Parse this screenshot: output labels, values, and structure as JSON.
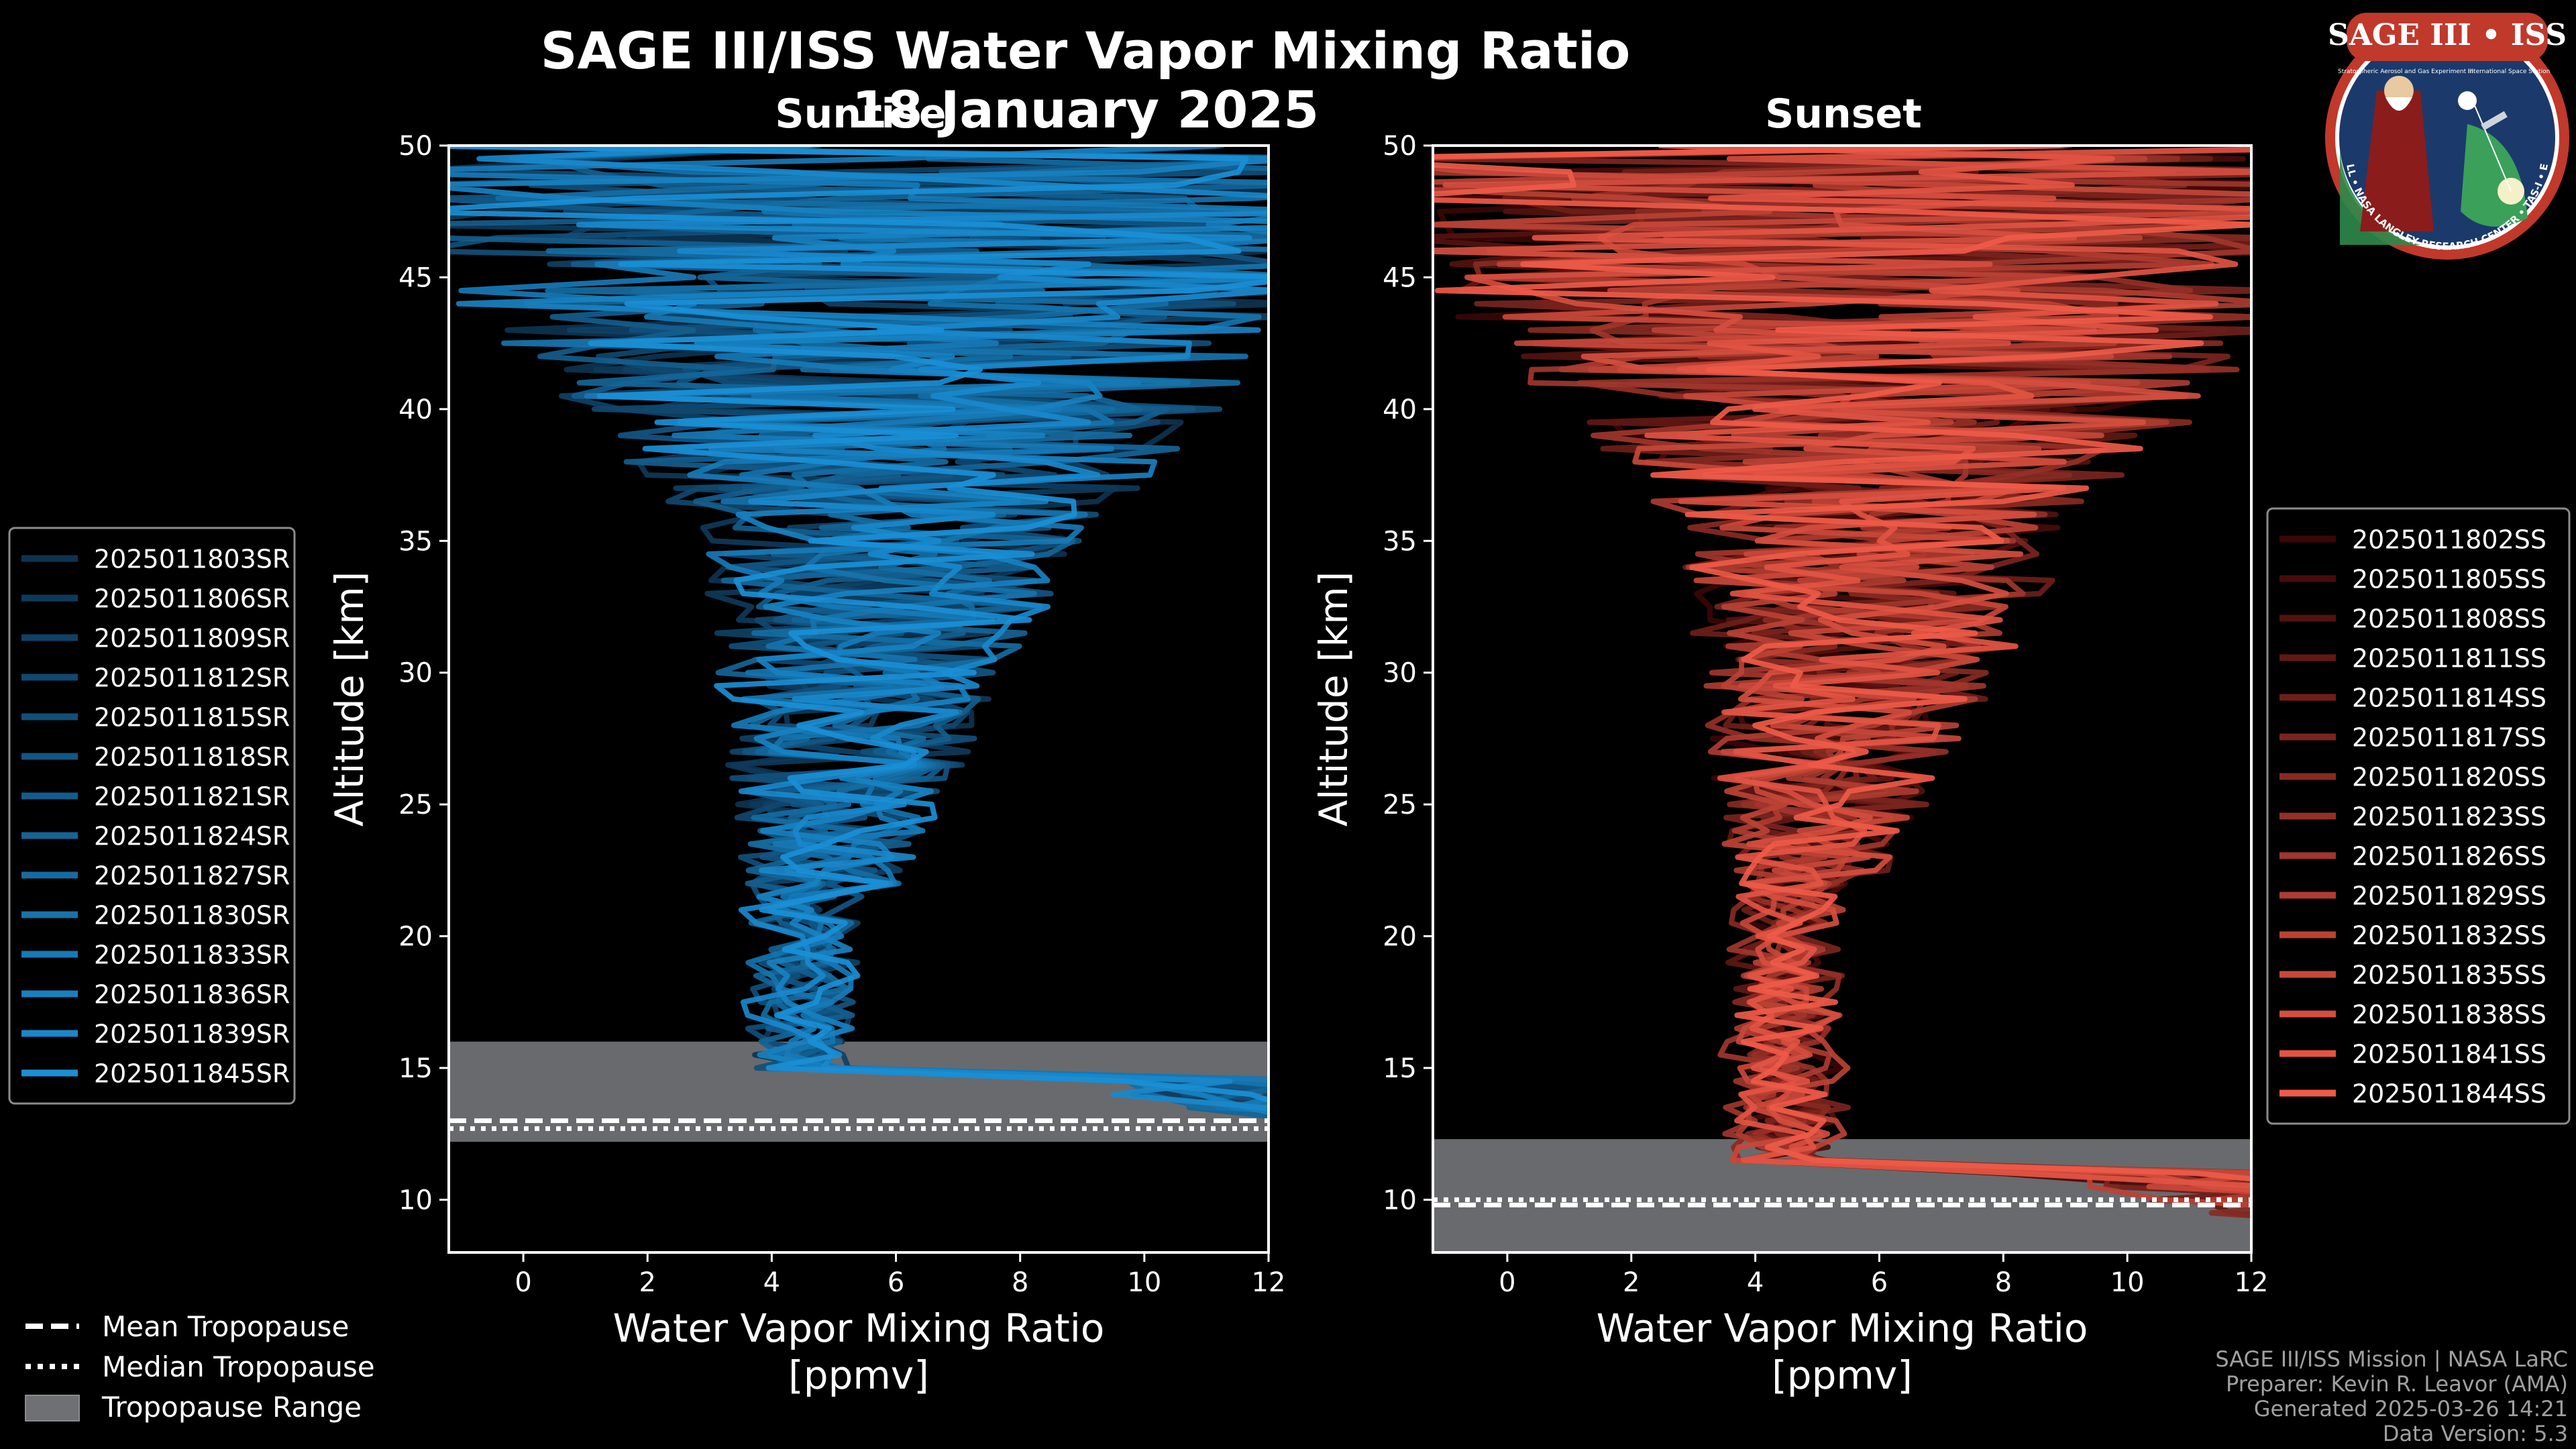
{
  "header": {
    "title": "SAGE III/ISS Water Vapor Mixing Ratio",
    "date": "18 January 2025",
    "left_subtitle": "Sunrise",
    "right_subtitle": "Sunset"
  },
  "logo": {
    "name": "SAGE III • ISS",
    "subtitle_left": "Stratospheric Aerosol and Gas Experiment III",
    "subtitle_right": "International Space Station",
    "ring_text": "BALL • NASA LANGLEY RESEARCH CENTER • TAS-I • ESA",
    "colors": {
      "ring": "#c0392b",
      "field": "#1b3a6b",
      "white": "#ffffff"
    }
  },
  "footer": {
    "line1": "SAGE III/ISS Mission | NASA LaRC",
    "line2": "Preparer: Kevin R. Leavor (AMA)",
    "line3": "Generated 2025-03-26 14:21",
    "line4": "Data Version: 5.3"
  },
  "tropopause_legend": {
    "mean": "Mean Tropopause",
    "median": "Median Tropopause",
    "range": "Tropopause Range"
  },
  "chart_data": [
    {
      "type": "line",
      "panel": "sunrise",
      "title": "Sunrise",
      "xlabel": "Water Vapor Mixing Ratio\n[ppmv]",
      "ylabel": "Altitude [km]",
      "xlim": [
        -1.2,
        12
      ],
      "ylim": [
        8,
        50
      ],
      "xticks": [
        0,
        2,
        4,
        6,
        8,
        10,
        12
      ],
      "yticks": [
        10,
        15,
        20,
        25,
        30,
        35,
        40,
        45,
        50
      ],
      "grid": false,
      "legend_position": "left",
      "tropopause": {
        "mean": 13.0,
        "median": 12.7,
        "range": [
          12.2,
          16.0
        ]
      },
      "color_dark": "#0d3350",
      "color_light": "#1a8fd6",
      "series": [
        {
          "name": "2025011803SR",
          "center_tropo": 4.5,
          "seed": 3
        },
        {
          "name": "2025011806SR",
          "center_tropo": 4.3,
          "seed": 6
        },
        {
          "name": "2025011809SR",
          "center_tropo": 4.6,
          "seed": 9
        },
        {
          "name": "2025011812SR",
          "center_tropo": 4.2,
          "seed": 12
        },
        {
          "name": "2025011815SR",
          "center_tropo": 4.4,
          "seed": 15
        },
        {
          "name": "2025011818SR",
          "center_tropo": 4.7,
          "seed": 18
        },
        {
          "name": "2025011821SR",
          "center_tropo": 4.5,
          "seed": 21
        },
        {
          "name": "2025011824SR",
          "center_tropo": 4.3,
          "seed": 24
        },
        {
          "name": "2025011827SR",
          "center_tropo": 4.6,
          "seed": 27
        },
        {
          "name": "2025011830SR",
          "center_tropo": 4.4,
          "seed": 30
        },
        {
          "name": "2025011833SR",
          "center_tropo": 4.8,
          "seed": 33
        },
        {
          "name": "2025011836SR",
          "center_tropo": 4.5,
          "seed": 36
        },
        {
          "name": "2025011839SR",
          "center_tropo": 4.2,
          "seed": 39
        },
        {
          "name": "2025011845SR",
          "center_tropo": 4.6,
          "seed": 45
        }
      ]
    },
    {
      "type": "line",
      "panel": "sunset",
      "title": "Sunset",
      "xlabel": "Water Vapor Mixing Ratio\n[ppmv]",
      "ylabel": "Altitude [km]",
      "xlim": [
        -1.2,
        12
      ],
      "ylim": [
        8,
        50
      ],
      "xticks": [
        0,
        2,
        4,
        6,
        8,
        10,
        12
      ],
      "yticks": [
        10,
        15,
        20,
        25,
        30,
        35,
        40,
        45,
        50
      ],
      "grid": false,
      "legend_position": "right",
      "tropopause": {
        "mean": 9.8,
        "median": 10.0,
        "range": [
          8.0,
          12.3
        ]
      },
      "color_dark": "#3a0606",
      "color_light": "#ef5a48",
      "series": [
        {
          "name": "2025011802SS",
          "center_tropo": 4.6,
          "seed": 2
        },
        {
          "name": "2025011805SS",
          "center_tropo": 4.4,
          "seed": 5
        },
        {
          "name": "2025011808SS",
          "center_tropo": 4.7,
          "seed": 8
        },
        {
          "name": "2025011811SS",
          "center_tropo": 4.3,
          "seed": 11
        },
        {
          "name": "2025011814SS",
          "center_tropo": 4.5,
          "seed": 14
        },
        {
          "name": "2025011817SS",
          "center_tropo": 4.8,
          "seed": 17
        },
        {
          "name": "2025011820SS",
          "center_tropo": 4.4,
          "seed": 20
        },
        {
          "name": "2025011823SS",
          "center_tropo": 4.6,
          "seed": 23
        },
        {
          "name": "2025011826SS",
          "center_tropo": 4.2,
          "seed": 26
        },
        {
          "name": "2025011829SS",
          "center_tropo": 4.5,
          "seed": 29
        },
        {
          "name": "2025011832SS",
          "center_tropo": 4.7,
          "seed": 32
        },
        {
          "name": "2025011835SS",
          "center_tropo": 4.4,
          "seed": 35
        },
        {
          "name": "2025011838SS",
          "center_tropo": 4.6,
          "seed": 38
        },
        {
          "name": "2025011841SS",
          "center_tropo": 4.3,
          "seed": 41
        },
        {
          "name": "2025011844SS",
          "center_tropo": 4.5,
          "seed": 44
        }
      ]
    }
  ]
}
